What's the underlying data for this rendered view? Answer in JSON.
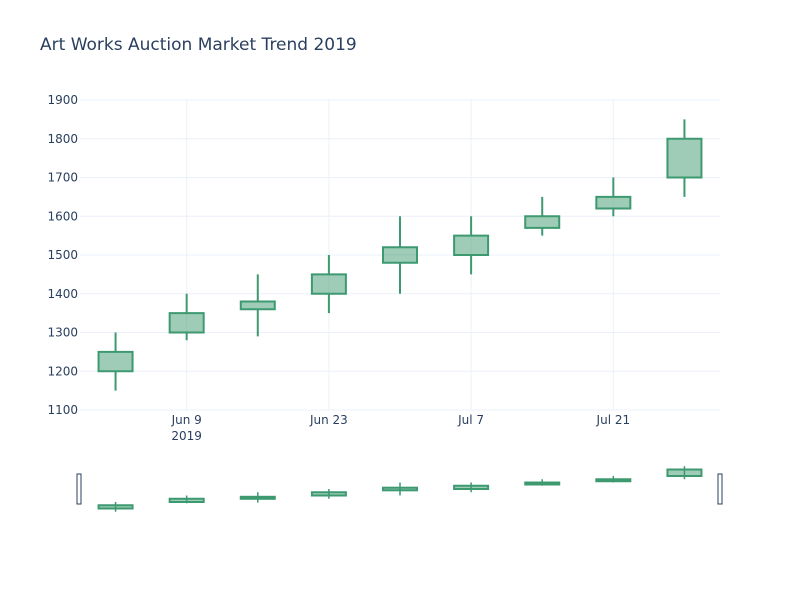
{
  "chart_data": {
    "type": "candlestick",
    "title": "Art Works Auction Market Trend 2019",
    "x_dates": [
      "2019-06-02",
      "2019-06-09",
      "2019-06-16",
      "2019-06-23",
      "2019-06-30",
      "2019-07-07",
      "2019-07-14",
      "2019-07-21",
      "2019-07-28"
    ],
    "open": [
      1200,
      1300,
      1360,
      1400,
      1480,
      1500,
      1570,
      1620,
      1700
    ],
    "high": [
      1300,
      1400,
      1450,
      1500,
      1600,
      1600,
      1650,
      1700,
      1850
    ],
    "low": [
      1150,
      1280,
      1290,
      1350,
      1400,
      1450,
      1550,
      1600,
      1650
    ],
    "close": [
      1250,
      1350,
      1380,
      1450,
      1520,
      1550,
      1600,
      1650,
      1800
    ],
    "ylim": [
      1100,
      1900
    ],
    "y_ticks": [
      1100,
      1200,
      1300,
      1400,
      1500,
      1600,
      1700,
      1800,
      1900
    ],
    "x_ticks": [
      {
        "date": "2019-06-09",
        "label": "Jun 9",
        "sublabel": "2019"
      },
      {
        "date": "2019-06-23",
        "label": "Jun 23",
        "sublabel": ""
      },
      {
        "date": "2019-07-07",
        "label": "Jul 7",
        "sublabel": ""
      },
      {
        "date": "2019-07-21",
        "label": "Jul 21",
        "sublabel": ""
      }
    ],
    "grid": true,
    "rangeslider": true,
    "colors": {
      "increasing_line": "#3d9970",
      "increasing_fill": "rgba(61,153,112,0.5)",
      "grid": "#ebf0f8",
      "text": "#2a3f5f"
    }
  }
}
